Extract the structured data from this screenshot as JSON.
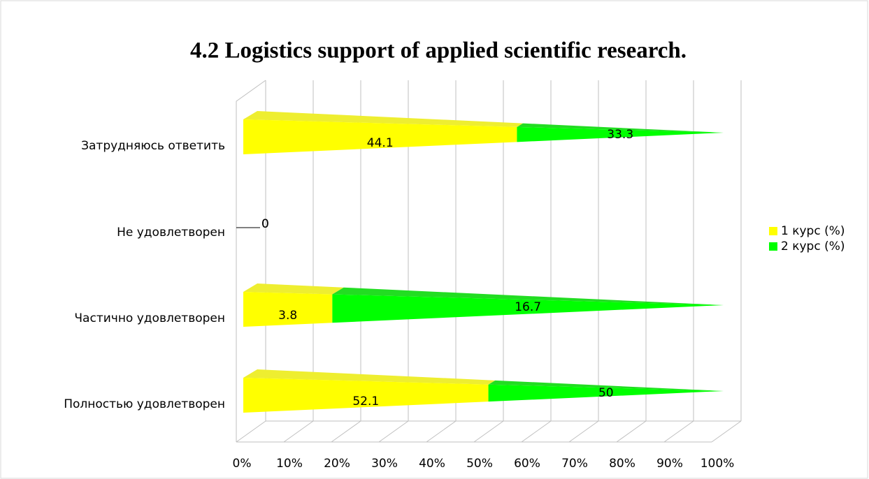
{
  "chart_data": {
    "type": "bar",
    "stacking": "percent",
    "orientation": "horizontal",
    "title": "4.2 Logistics support of applied scientific research.",
    "categories": [
      "Затрудняюсь ответить",
      "Не удовлетворен",
      "Частично удовлетворен",
      "Полностью удовлетворен"
    ],
    "series": [
      {
        "name": "1 курс (%)",
        "color": "#ffff00",
        "values": [
          44.1,
          0,
          3.8,
          52.1
        ]
      },
      {
        "name": "2 курс (%)",
        "color": "#00ff00",
        "values": [
          33.3,
          0,
          16.7,
          50
        ]
      }
    ],
    "xlim": [
      0,
      100
    ],
    "xticks": [
      {
        "value": 0,
        "label": "0%"
      },
      {
        "value": 10,
        "label": "10%"
      },
      {
        "value": 20,
        "label": "20%"
      },
      {
        "value": 30,
        "label": "30%"
      },
      {
        "value": 40,
        "label": "40%"
      },
      {
        "value": 50,
        "label": "50%"
      },
      {
        "value": 60,
        "label": "60%"
      },
      {
        "value": 70,
        "label": "70%"
      },
      {
        "value": 80,
        "label": "80%"
      },
      {
        "value": 90,
        "label": "90%"
      },
      {
        "value": 100,
        "label": "100%"
      }
    ],
    "grid": true,
    "legend": "right"
  }
}
